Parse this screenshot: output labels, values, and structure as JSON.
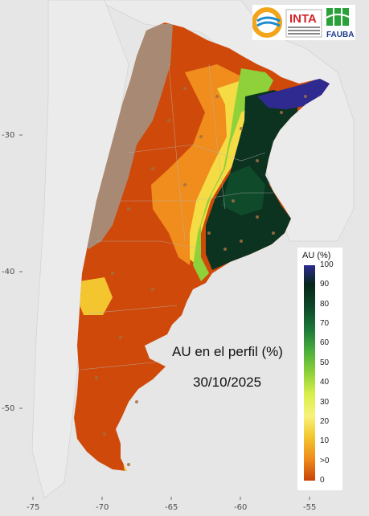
{
  "title": "AU en el perfil (%)",
  "date": "30/10/2025",
  "axes": {
    "x_ticks": [
      "-75",
      "-70",
      "-65",
      "-60",
      "-55"
    ],
    "y_ticks": [
      "-30",
      "-40",
      "-50"
    ]
  },
  "legend": {
    "title": "AU (%)",
    "labels": [
      "100",
      "90",
      "80",
      "70",
      "60",
      "50",
      "40",
      "30",
      "20",
      "10",
      ">0",
      "0"
    ],
    "colors": [
      "#2e2a8f",
      "#06271b",
      "#0f4a2a",
      "#1d7a3a",
      "#4caf3c",
      "#8fd13a",
      "#d8ef4a",
      "#f7f27a",
      "#f3c52e",
      "#ee8b1a",
      "#d94a0a",
      "#c8440a"
    ]
  },
  "logos": {
    "inta": "INTA",
    "fauba": "FAUBA"
  },
  "colors": {
    "dry": "#cf4a0a",
    "mountain": "#a88a74",
    "wet": "#0b3320",
    "flooded": "#2e2a8f",
    "background": "#e6e6e6"
  }
}
